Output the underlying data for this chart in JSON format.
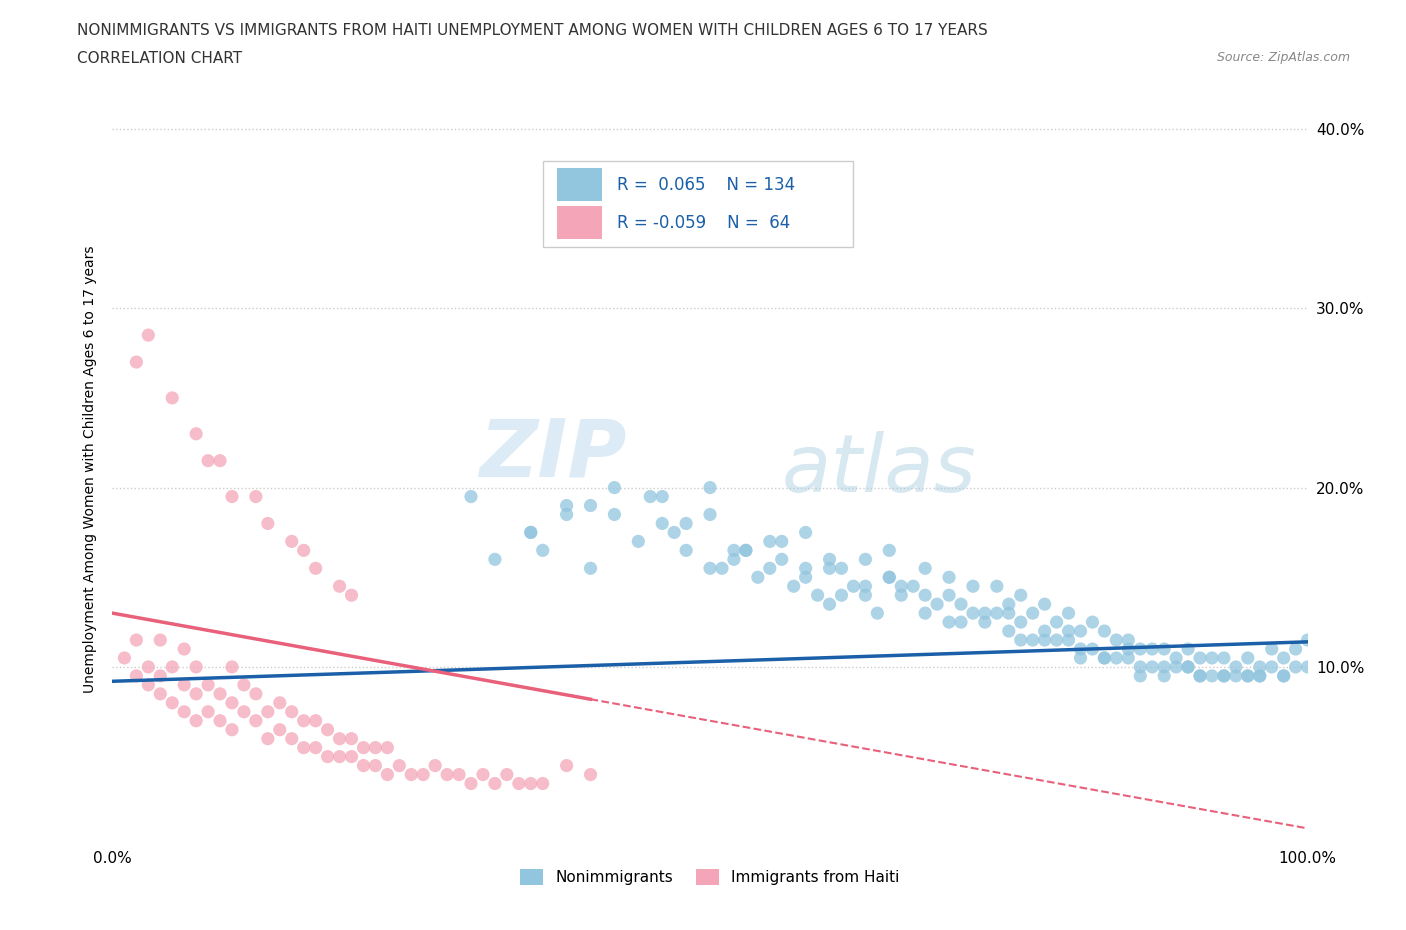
{
  "title_line1": "NONIMMIGRANTS VS IMMIGRANTS FROM HAITI UNEMPLOYMENT AMONG WOMEN WITH CHILDREN AGES 6 TO 17 YEARS",
  "title_line2": "CORRELATION CHART",
  "source": "Source: ZipAtlas.com",
  "ylabel": "Unemployment Among Women with Children Ages 6 to 17 years",
  "xlim": [
    0.0,
    1.0
  ],
  "ylim": [
    0.0,
    0.42
  ],
  "xtick_labels": [
    "0.0%",
    "100.0%"
  ],
  "ytick_positions": [
    0.1,
    0.2,
    0.3,
    0.4
  ],
  "ytick_labels": [
    "10.0%",
    "20.0%",
    "30.0%",
    "40.0%"
  ],
  "legend_blue_label": "Nonimmigrants",
  "legend_pink_label": "Immigrants from Haiti",
  "R_blue": 0.065,
  "N_blue": 134,
  "R_pink": -0.059,
  "N_pink": 64,
  "blue_color": "#92c5de",
  "pink_color": "#f4a6b8",
  "blue_line_color": "#1a5fa8",
  "pink_line_color": "#e8607a",
  "watermark_zip": "ZIP",
  "watermark_atlas": "atlas",
  "background_color": "#ffffff",
  "blue_intercept": 0.092,
  "blue_slope": 0.022,
  "pink_intercept": 0.13,
  "pink_slope": -0.12,
  "blue_scatter_x": [
    0.3,
    0.32,
    0.35,
    0.36,
    0.38,
    0.4,
    0.42,
    0.44,
    0.46,
    0.47,
    0.48,
    0.5,
    0.5,
    0.52,
    0.53,
    0.54,
    0.55,
    0.56,
    0.57,
    0.58,
    0.58,
    0.59,
    0.6,
    0.6,
    0.61,
    0.62,
    0.63,
    0.63,
    0.64,
    0.65,
    0.65,
    0.66,
    0.67,
    0.68,
    0.68,
    0.69,
    0.7,
    0.7,
    0.71,
    0.72,
    0.72,
    0.73,
    0.74,
    0.74,
    0.75,
    0.75,
    0.76,
    0.76,
    0.77,
    0.77,
    0.78,
    0.78,
    0.79,
    0.79,
    0.8,
    0.8,
    0.81,
    0.81,
    0.82,
    0.82,
    0.83,
    0.83,
    0.84,
    0.84,
    0.85,
    0.85,
    0.86,
    0.86,
    0.87,
    0.87,
    0.88,
    0.88,
    0.89,
    0.89,
    0.9,
    0.9,
    0.91,
    0.91,
    0.92,
    0.92,
    0.93,
    0.93,
    0.94,
    0.94,
    0.95,
    0.95,
    0.96,
    0.96,
    0.97,
    0.97,
    0.98,
    0.98,
    0.99,
    0.99,
    1.0,
    1.0,
    0.5,
    0.55,
    0.45,
    0.42,
    0.38,
    0.35,
    0.52,
    0.6,
    0.65,
    0.7,
    0.75,
    0.8,
    0.85,
    0.9,
    0.95,
    0.48,
    0.53,
    0.58,
    0.63,
    0.68,
    0.73,
    0.78,
    0.83,
    0.88,
    0.93,
    0.98,
    0.4,
    0.46,
    0.56,
    0.66,
    0.76,
    0.86,
    0.96,
    0.51,
    0.61,
    0.71,
    0.81,
    0.91
  ],
  "blue_scatter_y": [
    0.195,
    0.16,
    0.175,
    0.165,
    0.19,
    0.155,
    0.185,
    0.17,
    0.195,
    0.175,
    0.165,
    0.185,
    0.155,
    0.16,
    0.165,
    0.15,
    0.155,
    0.17,
    0.145,
    0.175,
    0.15,
    0.14,
    0.16,
    0.135,
    0.155,
    0.145,
    0.14,
    0.16,
    0.13,
    0.15,
    0.165,
    0.14,
    0.145,
    0.13,
    0.155,
    0.135,
    0.15,
    0.125,
    0.135,
    0.13,
    0.145,
    0.125,
    0.13,
    0.145,
    0.12,
    0.135,
    0.125,
    0.14,
    0.115,
    0.13,
    0.12,
    0.135,
    0.115,
    0.125,
    0.115,
    0.13,
    0.11,
    0.12,
    0.11,
    0.125,
    0.105,
    0.12,
    0.105,
    0.115,
    0.105,
    0.115,
    0.1,
    0.11,
    0.1,
    0.11,
    0.1,
    0.11,
    0.1,
    0.105,
    0.1,
    0.11,
    0.095,
    0.105,
    0.095,
    0.105,
    0.095,
    0.105,
    0.095,
    0.1,
    0.095,
    0.105,
    0.095,
    0.1,
    0.1,
    0.11,
    0.095,
    0.105,
    0.1,
    0.11,
    0.1,
    0.115,
    0.2,
    0.17,
    0.195,
    0.2,
    0.185,
    0.175,
    0.165,
    0.155,
    0.15,
    0.14,
    0.13,
    0.12,
    0.11,
    0.1,
    0.095,
    0.18,
    0.165,
    0.155,
    0.145,
    0.14,
    0.13,
    0.115,
    0.105,
    0.095,
    0.095,
    0.095,
    0.19,
    0.18,
    0.16,
    0.145,
    0.115,
    0.095,
    0.095,
    0.155,
    0.14,
    0.125,
    0.105,
    0.095
  ],
  "pink_scatter_x": [
    0.01,
    0.02,
    0.02,
    0.03,
    0.03,
    0.04,
    0.04,
    0.04,
    0.05,
    0.05,
    0.06,
    0.06,
    0.06,
    0.07,
    0.07,
    0.07,
    0.08,
    0.08,
    0.09,
    0.09,
    0.1,
    0.1,
    0.1,
    0.11,
    0.11,
    0.12,
    0.12,
    0.13,
    0.13,
    0.14,
    0.14,
    0.15,
    0.15,
    0.16,
    0.16,
    0.17,
    0.17,
    0.18,
    0.18,
    0.19,
    0.19,
    0.2,
    0.2,
    0.21,
    0.21,
    0.22,
    0.22,
    0.23,
    0.23,
    0.24,
    0.25,
    0.26,
    0.27,
    0.28,
    0.29,
    0.3,
    0.31,
    0.32,
    0.33,
    0.34,
    0.35,
    0.36,
    0.38,
    0.4
  ],
  "pink_scatter_y": [
    0.105,
    0.115,
    0.095,
    0.1,
    0.09,
    0.085,
    0.115,
    0.095,
    0.08,
    0.1,
    0.075,
    0.09,
    0.11,
    0.07,
    0.085,
    0.1,
    0.075,
    0.09,
    0.07,
    0.085,
    0.065,
    0.08,
    0.1,
    0.075,
    0.09,
    0.07,
    0.085,
    0.06,
    0.075,
    0.065,
    0.08,
    0.06,
    0.075,
    0.055,
    0.07,
    0.055,
    0.07,
    0.05,
    0.065,
    0.05,
    0.06,
    0.05,
    0.06,
    0.045,
    0.055,
    0.045,
    0.055,
    0.04,
    0.055,
    0.045,
    0.04,
    0.04,
    0.045,
    0.04,
    0.04,
    0.035,
    0.04,
    0.035,
    0.04,
    0.035,
    0.035,
    0.035,
    0.045,
    0.04
  ],
  "pink_extra_x": [
    0.02,
    0.03,
    0.05,
    0.07,
    0.08,
    0.09,
    0.1,
    0.12,
    0.13,
    0.15,
    0.16,
    0.17,
    0.19,
    0.2
  ],
  "pink_extra_y": [
    0.27,
    0.285,
    0.25,
    0.23,
    0.215,
    0.215,
    0.195,
    0.195,
    0.18,
    0.17,
    0.165,
    0.155,
    0.145,
    0.14
  ]
}
